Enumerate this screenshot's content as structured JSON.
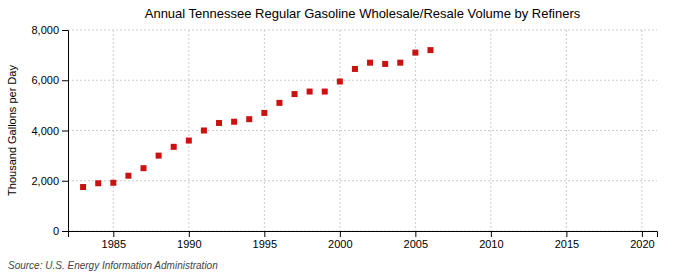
{
  "chart_data": {
    "type": "scatter",
    "title": "Annual Tennessee Regular Gasoline Wholesale/Resale Volume by Refiners",
    "ylabel": "Thousand Gallons per Day",
    "annotation": "Source: U.S. Energy Information Administration",
    "x": [
      1983,
      1984,
      1985,
      1986,
      1987,
      1988,
      1989,
      1990,
      1991,
      1992,
      1993,
      1994,
      1995,
      1996,
      1997,
      1998,
      1999,
      2000,
      2001,
      2002,
      2003,
      2004,
      2005,
      2006
    ],
    "values": [
      1750,
      1900,
      1920,
      2200,
      2500,
      3000,
      3350,
      3600,
      4000,
      4300,
      4350,
      4450,
      4700,
      5100,
      5450,
      5550,
      5550,
      5950,
      6450,
      6700,
      6650,
      6700,
      7100,
      7200
    ],
    "color": "#cc1111",
    "marker": "square",
    "xlim": [
      1982,
      2021
    ],
    "ylim": [
      0,
      8000
    ],
    "xticks": [
      1985,
      1990,
      1995,
      2000,
      2005,
      2010,
      2015,
      2020
    ],
    "yticks": [
      {
        "value": 0,
        "label": "0"
      },
      {
        "value": 2000,
        "label": "2,000"
      },
      {
        "value": 4000,
        "label": "4,000"
      },
      {
        "value": 6000,
        "label": "6,000"
      },
      {
        "value": 8000,
        "label": "8,000"
      }
    ],
    "grid": true
  }
}
